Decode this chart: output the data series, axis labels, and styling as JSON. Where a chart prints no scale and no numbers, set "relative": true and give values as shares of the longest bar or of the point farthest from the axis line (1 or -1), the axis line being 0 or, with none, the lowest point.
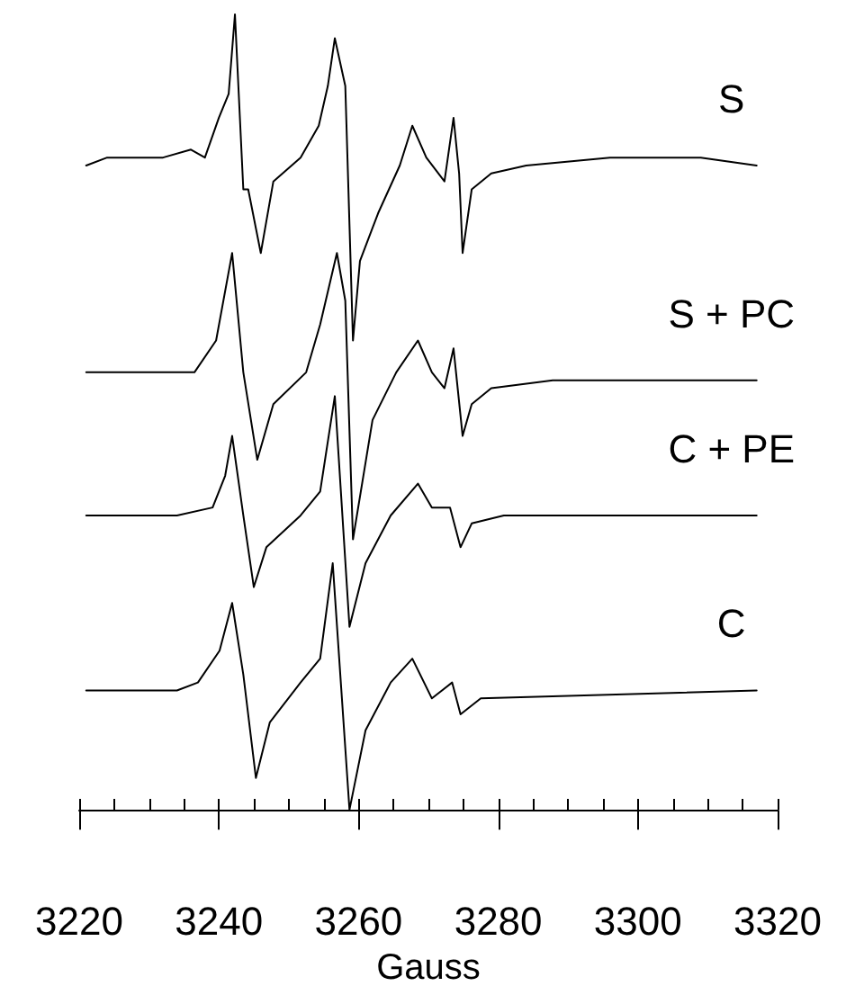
{
  "chart_data": {
    "type": "line",
    "relative": true,
    "xlabel": "Gauss",
    "xlim": [
      3220,
      3320
    ],
    "xticks": [
      3220,
      {
        "value": 3225,
        "label": null
      },
      {
        "value": 3230,
        "label": null
      },
      {
        "value": 3235,
        "label": null
      },
      3240,
      {
        "value": 3245,
        "label": null
      },
      {
        "value": 3250,
        "label": null
      },
      {
        "value": 3255,
        "label": null
      },
      3260,
      {
        "value": 3265,
        "label": null
      },
      {
        "value": 3270,
        "label": null
      },
      {
        "value": 3275,
        "label": null
      },
      3280,
      {
        "value": 3285,
        "label": null
      },
      {
        "value": 3290,
        "label": null
      },
      {
        "value": 3295,
        "label": null
      },
      3300,
      {
        "value": 3305,
        "label": null
      },
      {
        "value": 3310,
        "label": null
      },
      {
        "value": 3315,
        "label": null
      },
      3320
    ],
    "tick_labels": "x",
    "grid": false,
    "legend": false,
    "marker": "none",
    "line_style": "solid",
    "series": [
      {
        "name": "S",
        "color": "#000000",
        "x": [
          3221,
          3224,
          3228,
          3232,
          3236,
          3238,
          3240,
          3241.4,
          3242.3,
          3243.5,
          3244.2,
          3246,
          3247.8,
          3251.7,
          3254.3,
          3255.6,
          3256.6,
          3258.1,
          3259.2,
          3260.2,
          3262.8,
          3265.9,
          3267.7,
          3269.7,
          3272.3,
          3273.6,
          3274.4,
          3274.9,
          3276.2,
          3279,
          3284,
          3296,
          3309,
          3317
        ],
        "values": [
          0.81,
          0.82,
          0.82,
          0.82,
          0.83,
          0.82,
          0.87,
          0.9,
          1.0,
          0.78,
          0.78,
          0.7,
          0.79,
          0.82,
          0.86,
          0.91,
          0.97,
          0.91,
          0.59,
          0.69,
          0.75,
          0.81,
          0.86,
          0.82,
          0.79,
          0.87,
          0.8,
          0.7,
          0.78,
          0.8,
          0.81,
          0.82,
          0.82,
          0.81
        ]
      },
      {
        "name": "S + PC",
        "color": "#000000",
        "x": [
          3221,
          3229,
          3234,
          3236.5,
          3239.6,
          3241.9,
          3243.5,
          3245.5,
          3247.8,
          3252.5,
          3254.5,
          3256.9,
          3258.1,
          3259.2,
          3262,
          3265.4,
          3268.5,
          3270.5,
          3272.3,
          3273.6,
          3274.9,
          3276.2,
          3279,
          3287.8,
          3317
        ],
        "values": [
          0.55,
          0.55,
          0.55,
          0.55,
          0.59,
          0.7,
          0.55,
          0.44,
          0.51,
          0.55,
          0.61,
          0.7,
          0.64,
          0.34,
          0.49,
          0.55,
          0.59,
          0.55,
          0.53,
          0.58,
          0.47,
          0.51,
          0.53,
          0.54,
          0.54
        ]
      },
      {
        "name": "C + PE",
        "color": "#000000",
        "x": [
          3221,
          3234,
          3239.1,
          3240.9,
          3241.9,
          3243.5,
          3245,
          3246.8,
          3251.7,
          3254.5,
          3256.6,
          3258.7,
          3261,
          3264.6,
          3268.5,
          3270.5,
          3273.1,
          3274.6,
          3276.2,
          3280.8,
          3317
        ],
        "values": [
          0.37,
          0.37,
          0.38,
          0.42,
          0.47,
          0.37,
          0.28,
          0.33,
          0.37,
          0.4,
          0.52,
          0.23,
          0.31,
          0.37,
          0.41,
          0.38,
          0.38,
          0.33,
          0.36,
          0.37,
          0.37
        ]
      },
      {
        "name": "C",
        "color": "#000000",
        "x": [
          3221,
          3234,
          3237,
          3240.1,
          3241.9,
          3243.5,
          3245.3,
          3247.3,
          3251.7,
          3254.5,
          3256.3,
          3258.7,
          3261,
          3264.6,
          3267.7,
          3270.5,
          3273.4,
          3274.6,
          3277.5,
          3317
        ],
        "values": [
          0.15,
          0.15,
          0.16,
          0.2,
          0.26,
          0.17,
          0.04,
          0.11,
          0.16,
          0.19,
          0.31,
          0,
          0.1,
          0.16,
          0.19,
          0.14,
          0.16,
          0.12,
          0.14,
          0.15
        ]
      }
    ]
  }
}
